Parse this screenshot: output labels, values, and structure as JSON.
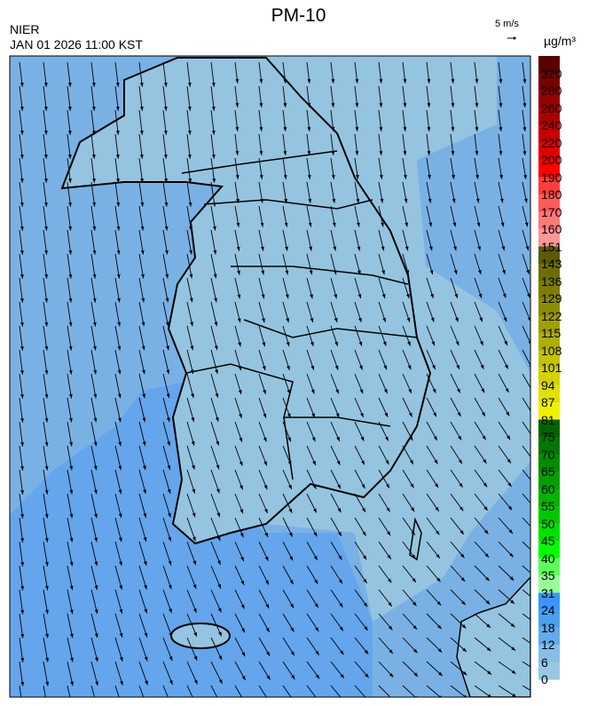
{
  "header": {
    "title": "PM-10",
    "source": "NIER",
    "datetime": "JAN 01 2026 11:00 KST"
  },
  "wind_reference": {
    "label": "5 m/s"
  },
  "colorbar": {
    "unit": "µg/m³",
    "labels": [
      "320",
      "280",
      "260",
      "240",
      "220",
      "200",
      "190",
      "180",
      "170",
      "160",
      "151",
      "143",
      "136",
      "129",
      "122",
      "115",
      "108",
      "101",
      "94",
      "87",
      "81",
      "75",
      "70",
      "65",
      "60",
      "55",
      "50",
      "45",
      "40",
      "35",
      "31",
      "24",
      "18",
      "12",
      "6",
      "0"
    ],
    "colors": [
      "#5a0000",
      "#780000",
      "#960000",
      "#aa0000",
      "#c80000",
      "#e10000",
      "#ff0000",
      "#ff3c3c",
      "#ff5a5a",
      "#ff7878",
      "#ff9696",
      "#5a5a00",
      "#6e6e00",
      "#7d7d00",
      "#8c8c00",
      "#a0a000",
      "#afaf00",
      "#c3c300",
      "#d2d200",
      "#e1e100",
      "#f0f000",
      "#006400",
      "#007800",
      "#008c00",
      "#00a000",
      "#00b400",
      "#00c800",
      "#00e100",
      "#00ff00",
      "#5aff5a",
      "#96ff96",
      "#3796ff",
      "#4b9ff0",
      "#64aaeb",
      "#87bee6",
      "#96c8e1"
    ]
  },
  "map": {
    "region": "Korean Peninsula",
    "sea_color": "#7ab1e5",
    "land_color": "#94c4e0",
    "high_color": "#64a5ec"
  }
}
